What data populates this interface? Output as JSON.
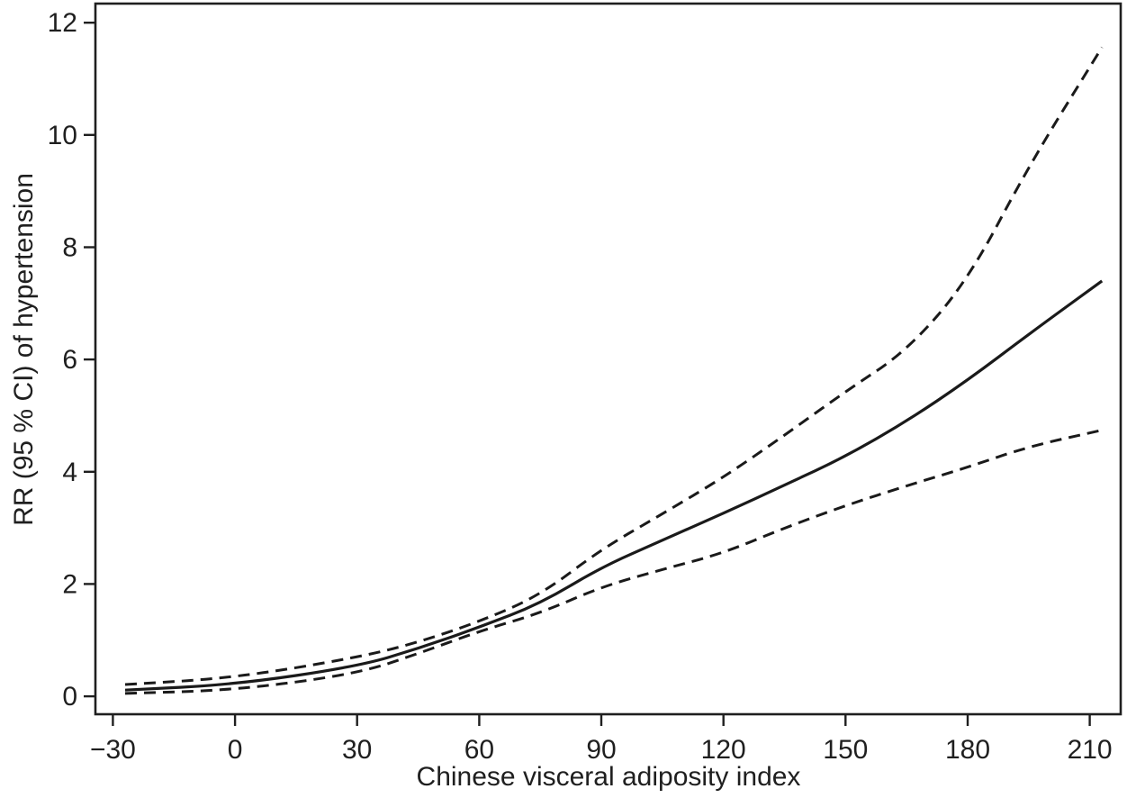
{
  "figure": {
    "background": "#ffffff",
    "ink_color": "#1f1f1f",
    "curve_color": "#1a1a1a"
  },
  "chart_data": {
    "type": "line",
    "title": "",
    "xlabel": "Chinese visceral adiposity index",
    "ylabel": "RR (95 % CI) of hypertension",
    "x_ticks": [
      -30,
      0,
      30,
      60,
      90,
      120,
      150,
      180,
      210
    ],
    "y_ticks": [
      0,
      2,
      4,
      6,
      8,
      10,
      12
    ],
    "xlim": [
      -34.3,
      217.6
    ],
    "ylim": [
      -0.32,
      12.34
    ],
    "grid": false,
    "legend": "none",
    "x": [
      -27,
      0,
      30,
      45,
      60,
      75,
      90,
      105,
      120,
      135,
      150,
      165,
      180,
      195,
      213
    ],
    "series": [
      {
        "name": "RR point estimate",
        "line": "solid",
        "values": [
          0.11,
          0.21,
          0.53,
          0.85,
          1.23,
          1.65,
          2.3,
          2.78,
          3.26,
          3.76,
          4.27,
          4.9,
          5.63,
          6.45,
          7.4
        ]
      },
      {
        "name": "Upper 95% CI bound",
        "line": "dashed",
        "values": [
          0.21,
          0.33,
          0.69,
          0.96,
          1.33,
          1.8,
          2.62,
          3.25,
          3.9,
          4.65,
          5.43,
          6.15,
          7.4,
          9.45,
          11.56
        ]
      },
      {
        "name": "Lower 95% CI bound",
        "line": "dashed",
        "values": [
          0.05,
          0.11,
          0.4,
          0.76,
          1.16,
          1.48,
          1.95,
          2.26,
          2.55,
          3.0,
          3.4,
          3.75,
          4.08,
          4.45,
          4.74
        ]
      }
    ]
  }
}
